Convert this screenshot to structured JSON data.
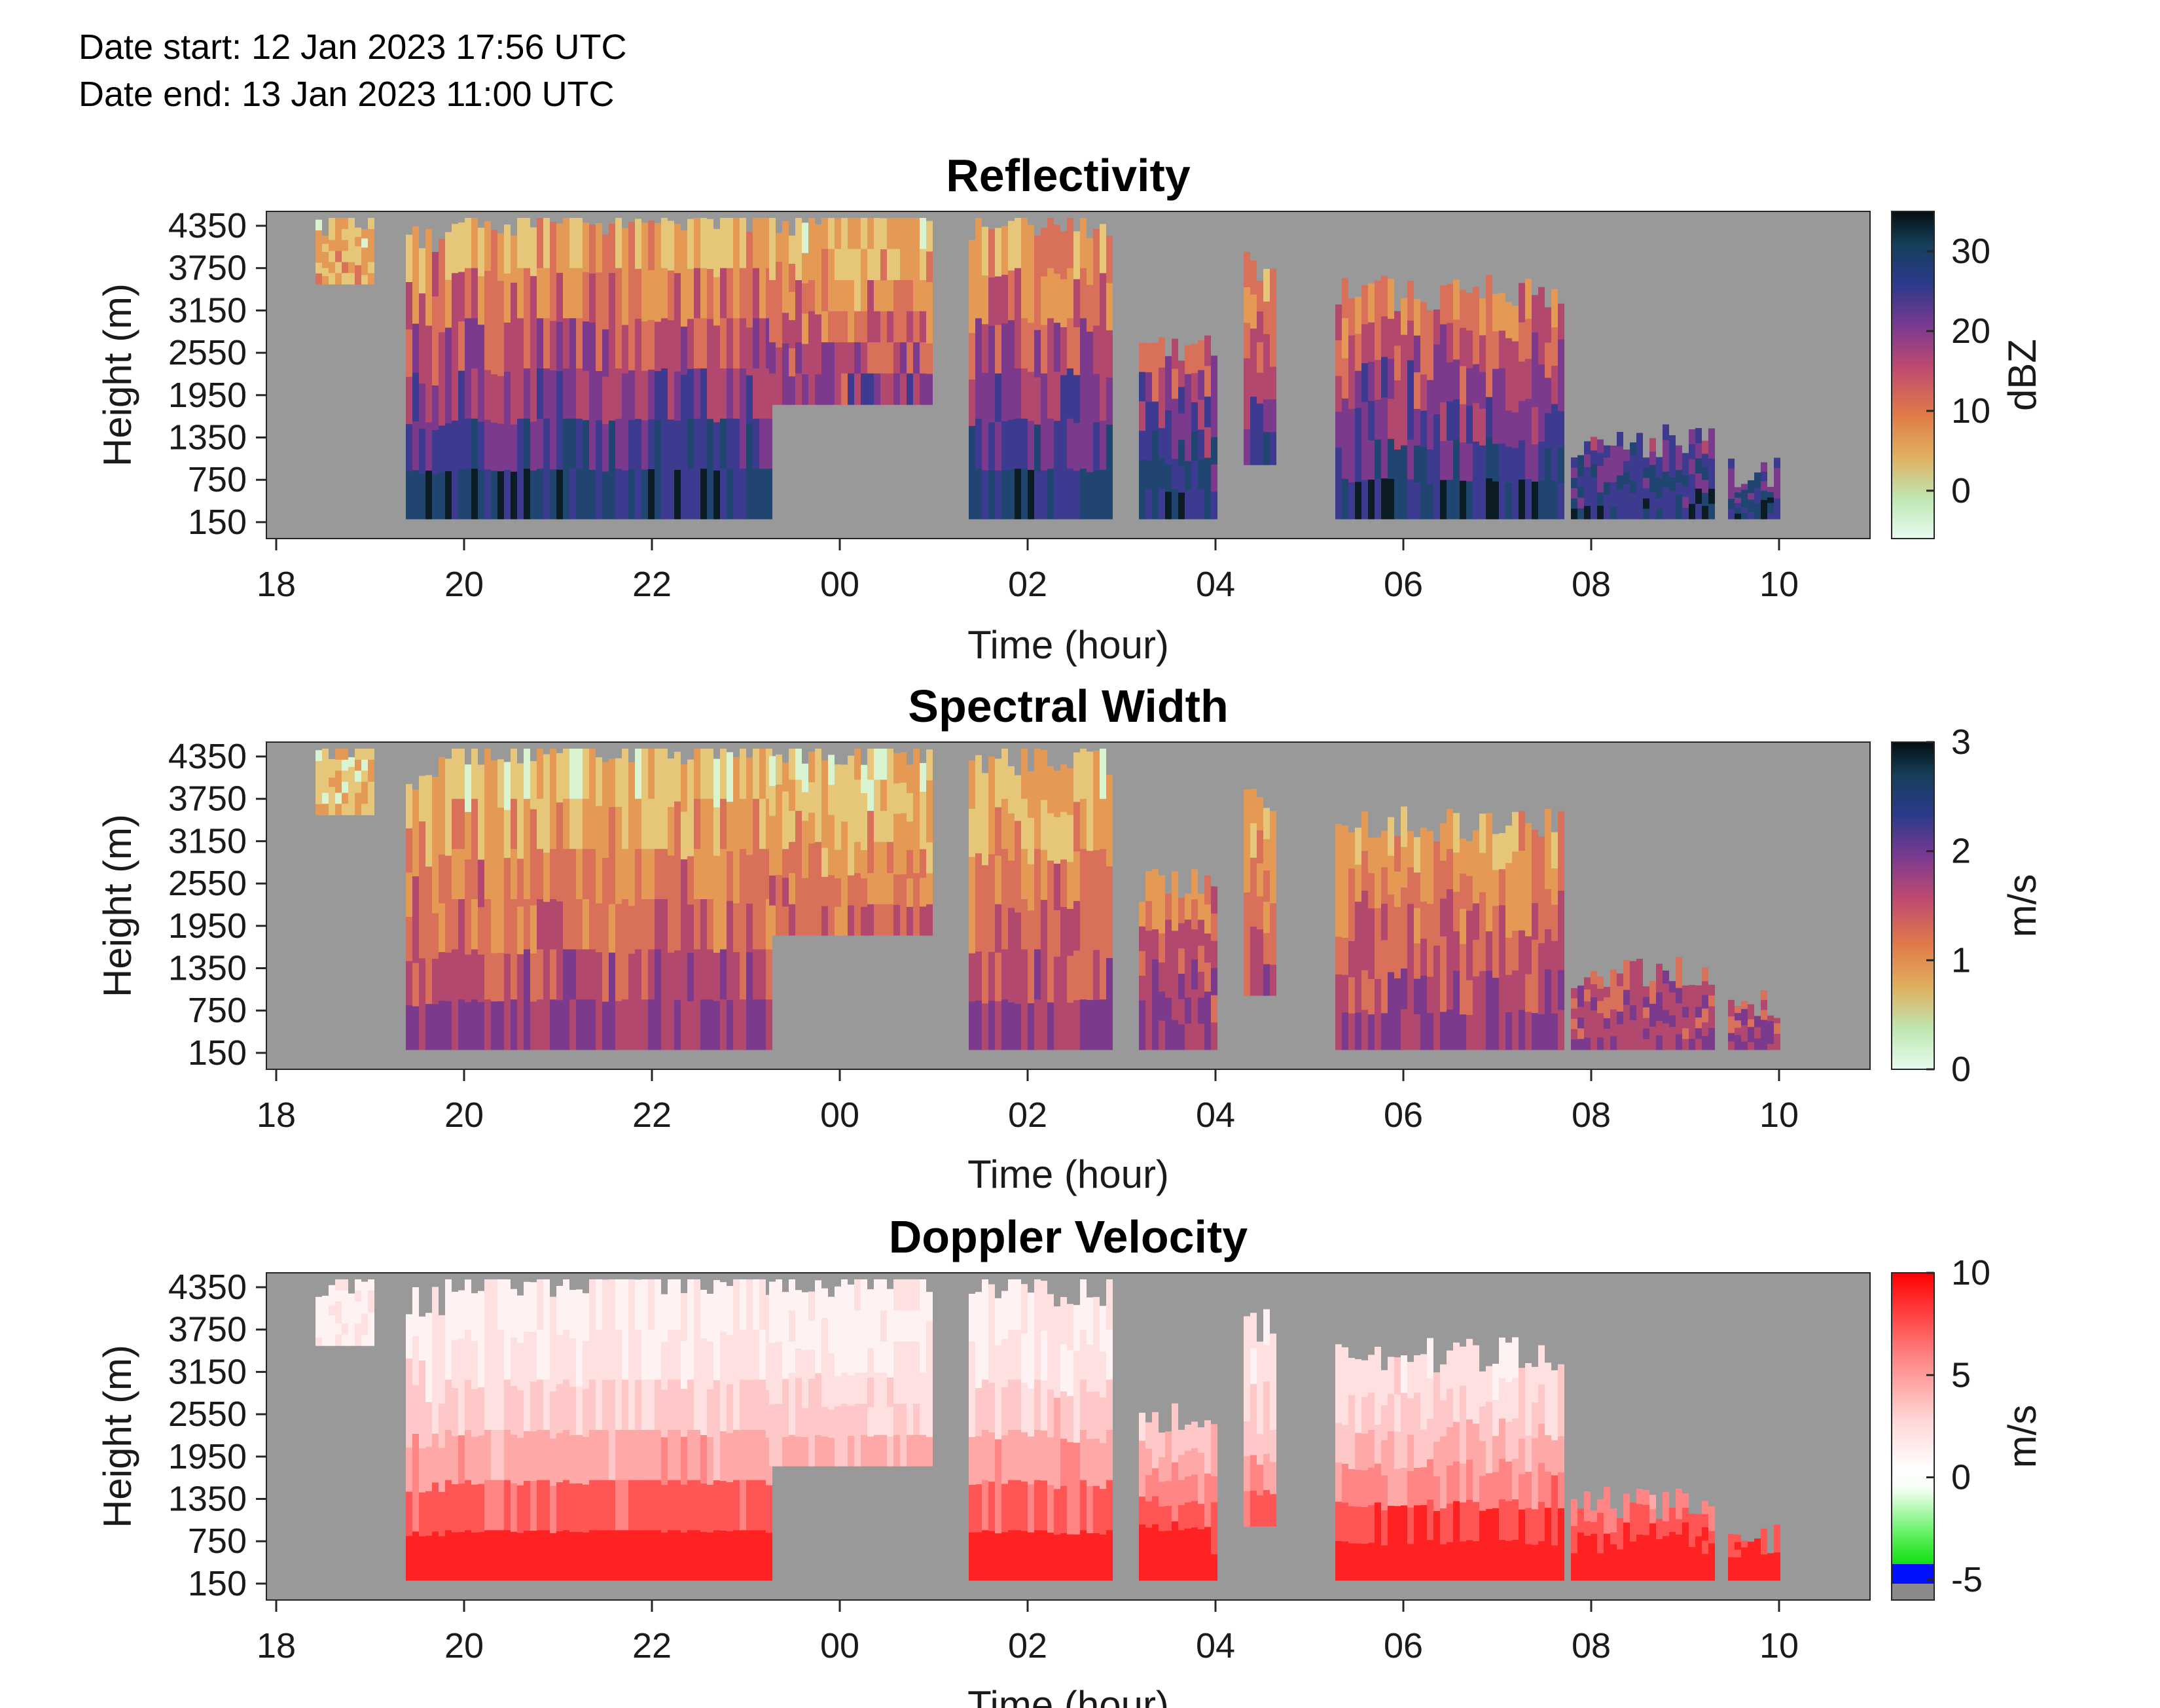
{
  "header": {
    "date_start": "Date start: 12 Jan 2023 17:56 UTC",
    "date_end": "Date end:  13 Jan 2023 11:00 UTC"
  },
  "colors": {
    "no_data": "#999999",
    "axis": "#262626"
  },
  "chart_data": [
    {
      "type": "heatmap",
      "title": "Reflectivity",
      "xlabel": "Time (hour)",
      "ylabel": "Height (m)",
      "x_tick_labels": [
        "18",
        "20",
        "22",
        "00",
        "02",
        "04",
        "06",
        "08",
        "10"
      ],
      "y_tick_labels": [
        "4350",
        "3750",
        "3150",
        "2550",
        "1950",
        "1350",
        "750",
        "150"
      ],
      "colorbar": {
        "label": "dBZ",
        "ticks": [
          "30",
          "20",
          "10",
          "0"
        ],
        "range": [
          -6,
          35
        ]
      },
      "colormap": "cubehelix-like (pale green → orange → magenta → dark blue → black)",
      "background": "gray (no data)"
    },
    {
      "type": "heatmap",
      "title": "Spectral Width",
      "xlabel": "Time (hour)",
      "ylabel": "Height (m)",
      "x_tick_labels": [
        "18",
        "20",
        "22",
        "00",
        "02",
        "04",
        "06",
        "08",
        "10"
      ],
      "y_tick_labels": [
        "4350",
        "3750",
        "3150",
        "2550",
        "1950",
        "1350",
        "750",
        "150"
      ],
      "colorbar": {
        "label": "m/s",
        "ticks": [
          "3",
          "2",
          "1",
          "0"
        ],
        "range": [
          0,
          3
        ]
      },
      "colormap": "cubehelix-like (pale green → orange → magenta → dark blue → black)",
      "background": "gray (no data)"
    },
    {
      "type": "heatmap",
      "title": "Doppler Velocity",
      "xlabel": "Time (hour)",
      "ylabel": "Height (m)",
      "x_tick_labels": [
        "18",
        "20",
        "22",
        "00",
        "02",
        "04",
        "06",
        "08",
        "10"
      ],
      "y_tick_labels": [
        "4350",
        "3750",
        "3150",
        "2550",
        "1950",
        "1350",
        "750",
        "150"
      ],
      "colorbar": {
        "label": "m/s",
        "ticks": [
          "10",
          "5",
          "0",
          "-5"
        ],
        "range": [
          -6,
          10
        ]
      },
      "colormap": "diverging (blue/green negative → white → red positive)",
      "background": "gray (no data)"
    }
  ]
}
